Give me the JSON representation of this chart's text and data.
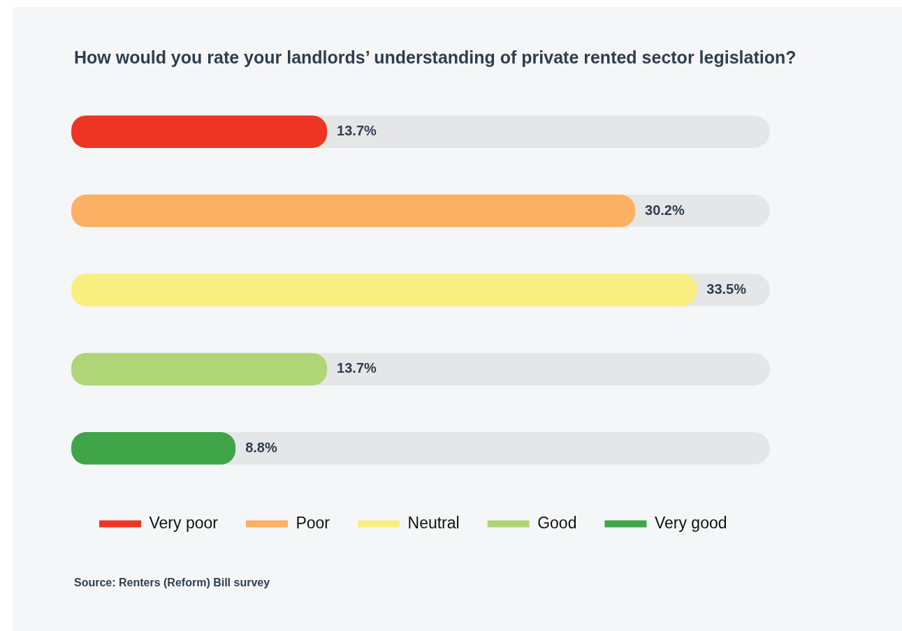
{
  "chart_data": {
    "type": "bar",
    "orientation": "horizontal",
    "stacked": true,
    "title": "How would you rate your landlords’ understanding of private rented sector legislation?",
    "categories": [
      null,
      null,
      null,
      null,
      null
    ],
    "series": [
      {
        "name": "Very poor",
        "color": "#ee3524",
        "values": [
          13.7,
          null,
          null,
          null,
          null
        ],
        "value_labels": [
          "13.7%",
          null,
          null,
          null,
          null
        ]
      },
      {
        "name": "Poor",
        "color": "#fbb063",
        "values": [
          null,
          30.2,
          null,
          null,
          null
        ],
        "value_labels": [
          null,
          "30.2%",
          null,
          null,
          null
        ]
      },
      {
        "name": "Neutral",
        "color": "#f9ee80",
        "values": [
          null,
          null,
          33.5,
          null,
          null
        ],
        "value_labels": [
          null,
          null,
          "33.5%",
          null,
          null
        ]
      },
      {
        "name": "Good",
        "color": "#afd576",
        "values": [
          null,
          null,
          null,
          13.7,
          null
        ],
        "value_labels": [
          null,
          null,
          null,
          "13.7%",
          null
        ]
      },
      {
        "name": "Very good",
        "color": "#40a548",
        "values": [
          null,
          null,
          null,
          null,
          8.8
        ],
        "value_labels": [
          null,
          null,
          null,
          null,
          "8.8%"
        ]
      }
    ],
    "legend": "bottom",
    "annotations": [
      "Source: Renters (Reform) Bill survey"
    ]
  }
}
